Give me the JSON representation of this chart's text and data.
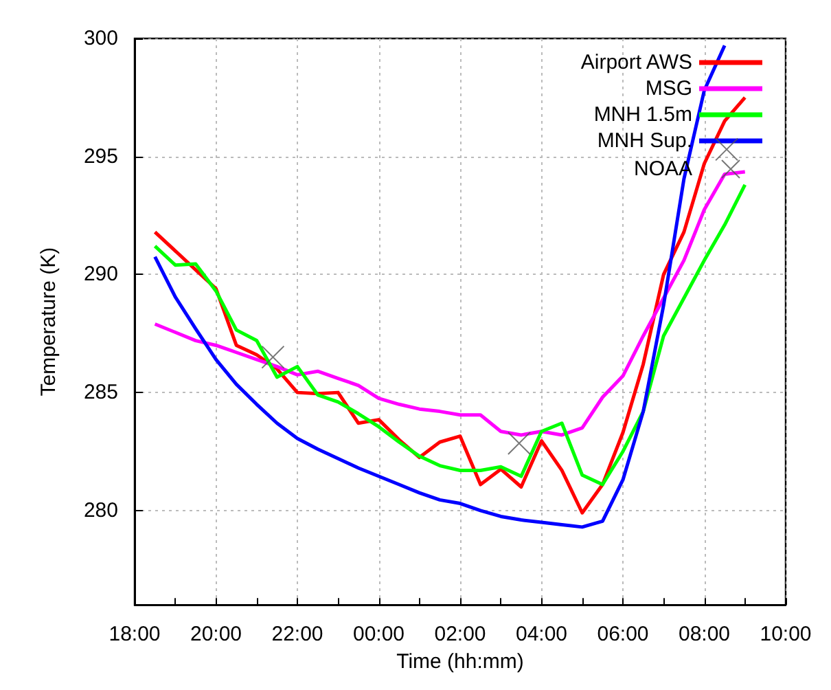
{
  "chart_data": {
    "type": "line",
    "xlabel": "Time (hh:mm)",
    "ylabel": "Temperature (K)",
    "xlim": [
      "2000-01-01T18:00",
      "2000-01-02T10:00"
    ],
    "ylim": [
      276,
      300
    ],
    "xticks": [
      {
        "value": "2000-01-01T18:00",
        "label": "18:00"
      },
      {
        "value": "2000-01-01T19:00",
        "label": null
      },
      {
        "value": "2000-01-01T20:00",
        "label": "20:00"
      },
      {
        "value": "2000-01-01T21:00",
        "label": null
      },
      {
        "value": "2000-01-01T22:00",
        "label": "22:00"
      },
      {
        "value": "2000-01-01T23:00",
        "label": null
      },
      {
        "value": "2000-01-02T00:00",
        "label": "00:00"
      },
      {
        "value": "2000-01-02T01:00",
        "label": null
      },
      {
        "value": "2000-01-02T02:00",
        "label": "02:00"
      },
      {
        "value": "2000-01-02T03:00",
        "label": null
      },
      {
        "value": "2000-01-02T04:00",
        "label": "04:00"
      },
      {
        "value": "2000-01-02T05:00",
        "label": null
      },
      {
        "value": "2000-01-02T06:00",
        "label": "06:00"
      },
      {
        "value": "2000-01-02T07:00",
        "label": null
      },
      {
        "value": "2000-01-02T08:00",
        "label": "08:00"
      },
      {
        "value": "2000-01-02T09:00",
        "label": null
      },
      {
        "value": "2000-01-02T10:00",
        "label": "10:00"
      }
    ],
    "yticks": [
      280,
      285,
      290,
      295,
      300
    ],
    "grid": true,
    "legend": "top right",
    "line_style": "solid",
    "x": [
      "2000-01-01T18:30",
      "2000-01-01T19:00",
      "2000-01-01T19:30",
      "2000-01-01T20:00",
      "2000-01-01T20:30",
      "2000-01-01T21:00",
      "2000-01-01T21:30",
      "2000-01-01T22:00",
      "2000-01-01T22:30",
      "2000-01-01T23:00",
      "2000-01-01T23:30",
      "2000-01-02T00:00",
      "2000-01-02T00:30",
      "2000-01-02T01:00",
      "2000-01-02T01:30",
      "2000-01-02T02:00",
      "2000-01-02T02:30",
      "2000-01-02T03:00",
      "2000-01-02T03:30",
      "2000-01-02T04:00",
      "2000-01-02T04:30",
      "2000-01-02T05:00",
      "2000-01-02T05:30",
      "2000-01-02T06:00",
      "2000-01-02T06:30",
      "2000-01-02T07:00",
      "2000-01-02T07:30",
      "2000-01-02T08:00",
      "2000-01-02T08:30",
      "2000-01-02T09:00"
    ],
    "series": [
      {
        "name": "Airport AWS",
        "color": "#ff0000",
        "marker": "none",
        "values": [
          291.8,
          291.0,
          290.2,
          289.4,
          287.0,
          286.6,
          286.0,
          285.0,
          284.95,
          285.0,
          283.7,
          283.85,
          283.0,
          282.25,
          282.9,
          283.15,
          281.1,
          281.75,
          281.0,
          282.95,
          281.7,
          279.9,
          281.1,
          283.3,
          286.2,
          290.0,
          291.8,
          294.7,
          296.5,
          297.5
        ]
      },
      {
        "name": "MSG",
        "color": "#ff00ff",
        "marker": "none",
        "values": [
          287.9,
          287.55,
          287.2,
          287.0,
          286.7,
          286.4,
          286.1,
          285.75,
          285.9,
          285.6,
          285.3,
          284.75,
          284.5,
          284.3,
          284.2,
          284.05,
          284.05,
          283.35,
          283.2,
          283.35,
          283.2,
          283.5,
          284.8,
          285.7,
          287.4,
          289.0,
          290.6,
          292.75,
          294.25,
          294.35
        ]
      },
      {
        "name": "MNH 1.5m",
        "color": "#00ff00",
        "marker": "none",
        "values": [
          291.2,
          290.4,
          290.45,
          289.3,
          287.65,
          287.2,
          285.65,
          286.1,
          284.9,
          284.6,
          284.1,
          283.55,
          282.9,
          282.3,
          281.9,
          281.7,
          281.7,
          281.85,
          281.45,
          283.35,
          283.7,
          281.5,
          281.1,
          282.5,
          284.2,
          287.4,
          289.0,
          290.6,
          292.1,
          293.8
        ]
      },
      {
        "name": "MNH Sup.",
        "color": "#0000ff",
        "marker": "none",
        "x": [
          "2000-01-01T18:30",
          "2000-01-01T19:00",
          "2000-01-01T19:30",
          "2000-01-01T20:00",
          "2000-01-01T20:30",
          "2000-01-01T21:00",
          "2000-01-01T21:30",
          "2000-01-01T22:00",
          "2000-01-01T22:30",
          "2000-01-01T23:00",
          "2000-01-01T23:30",
          "2000-01-02T00:00",
          "2000-01-02T00:30",
          "2000-01-02T01:00",
          "2000-01-02T01:30",
          "2000-01-02T02:00",
          "2000-01-02T02:30",
          "2000-01-02T03:00",
          "2000-01-02T03:30",
          "2000-01-02T04:00",
          "2000-01-02T04:30",
          "2000-01-02T05:00",
          "2000-01-02T05:30",
          "2000-01-02T06:00",
          "2000-01-02T06:30",
          "2000-01-02T07:00",
          "2000-01-02T07:30",
          "2000-01-02T08:00",
          "2000-01-02T08:30"
        ],
        "values": [
          290.75,
          289.05,
          287.7,
          286.4,
          285.35,
          284.5,
          283.7,
          283.05,
          282.6,
          282.2,
          281.8,
          281.45,
          281.1,
          280.75,
          280.45,
          280.3,
          280.0,
          279.75,
          279.6,
          279.5,
          279.4,
          279.3,
          279.55,
          281.3,
          284.2,
          288.7,
          294.05,
          297.8,
          299.7
        ]
      },
      {
        "name": "NOAA",
        "type": "scatter",
        "color": "#555555",
        "marker": "cross",
        "x": [
          "2000-01-01T21:24",
          "2000-01-02T03:27",
          "2000-01-02T08:33"
        ],
        "values": [
          286.5,
          282.85,
          295.3
        ]
      }
    ]
  }
}
